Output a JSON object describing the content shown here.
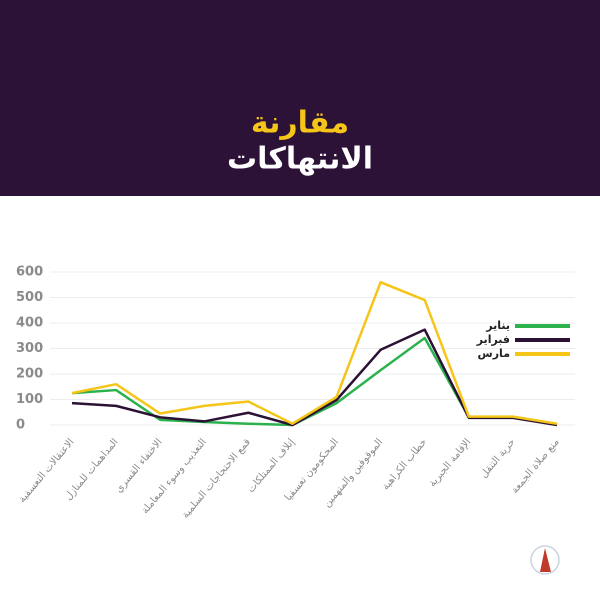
{
  "chart_data": {
    "type": "line",
    "title": "مقارنة",
    "subtitle": "الانتهاكات",
    "categories": [
      "الاعتقالات التعسفية",
      "المداهمات للمنازل",
      "الاختفاء القسري",
      "التعذيب وسوء المعاملة",
      "قمع الاحتجاجات السلمية",
      "إتلاف الممتلكات",
      "المحكومون تعسفيا",
      "الموقوفين والمتهمين",
      "خطاب الكراهية",
      "الإقامة الجبرية",
      "حرية التنقل",
      "منع صلاة الجمعة"
    ],
    "series": [
      {
        "name": "يناير",
        "color": "#2bb24c",
        "values": [
          125,
          137,
          20,
          12,
          5,
          0,
          86,
          215,
          341,
          31,
          31,
          3
        ]
      },
      {
        "name": "فبراير",
        "color": "#2b1235",
        "values": [
          86,
          75,
          30,
          14,
          48,
          0,
          98,
          295,
          374,
          28,
          28,
          0
        ]
      },
      {
        "name": "مارس",
        "color": "#f5c518",
        "values": [
          125,
          160,
          45,
          75,
          92,
          5,
          110,
          560,
          490,
          33,
          33,
          5
        ]
      }
    ],
    "ylim": [
      0,
      600
    ],
    "yticks": [
      0,
      100,
      200,
      300,
      400,
      500,
      600
    ],
    "grid": true,
    "legend": "right"
  }
}
